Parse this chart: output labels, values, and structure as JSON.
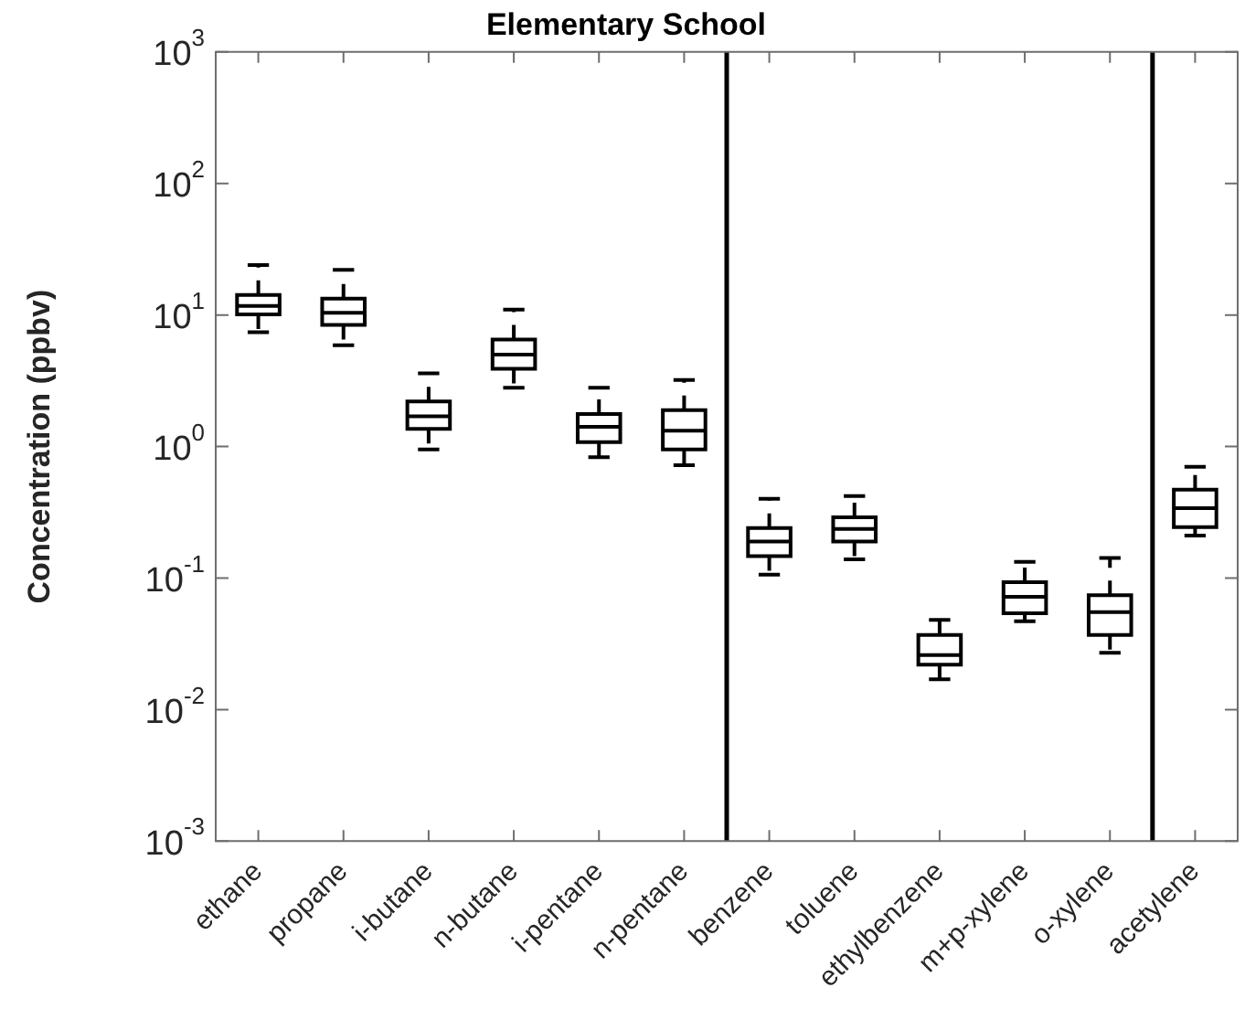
{
  "chart_data": {
    "type": "box",
    "title": "Elementary School",
    "ylabel": "Concentration (ppbv)",
    "categories": [
      "ethane",
      "propane",
      "i-butane",
      "n-butane",
      "i-pentane",
      "n-pentane",
      "benzene",
      "toluene",
      "ethylbenzene",
      "m+p-xylene",
      "o-xylene",
      "acetylene"
    ],
    "boxes": [
      {
        "low": 7.4,
        "q1": 10.1,
        "median": 11.7,
        "q3": 14.2,
        "high": 24
      },
      {
        "low": 5.9,
        "q1": 8.4,
        "median": 10.4,
        "q3": 13.3,
        "high": 22
      },
      {
        "low": 0.95,
        "q1": 1.36,
        "median": 1.7,
        "q3": 2.2,
        "high": 3.6
      },
      {
        "low": 2.8,
        "q1": 3.9,
        "median": 5.0,
        "q3": 6.5,
        "high": 11
      },
      {
        "low": 0.83,
        "q1": 1.08,
        "median": 1.41,
        "q3": 1.77,
        "high": 2.8
      },
      {
        "low": 0.72,
        "q1": 0.95,
        "median": 1.32,
        "q3": 1.89,
        "high": 3.2
      },
      {
        "low": 0.106,
        "q1": 0.147,
        "median": 0.19,
        "q3": 0.24,
        "high": 0.4
      },
      {
        "low": 0.139,
        "q1": 0.19,
        "median": 0.236,
        "q3": 0.29,
        "high": 0.42
      },
      {
        "low": 0.017,
        "q1": 0.022,
        "median": 0.026,
        "q3": 0.037,
        "high": 0.048
      },
      {
        "low": 0.047,
        "q1": 0.054,
        "median": 0.072,
        "q3": 0.093,
        "high": 0.133
      },
      {
        "low": 0.027,
        "q1": 0.037,
        "median": 0.055,
        "q3": 0.074,
        "high": 0.142
      },
      {
        "low": 0.21,
        "q1": 0.244,
        "median": 0.34,
        "q3": 0.47,
        "high": 0.7
      }
    ],
    "color": "#000000",
    "log": true,
    "ylim": [
      0.001,
      1000
    ],
    "yticks": [
      {
        "value": 0.001,
        "label": "10$^{-3}$"
      },
      {
        "value": 0.01,
        "label": "10$^{-2}$"
      },
      {
        "value": 0.1,
        "label": "10$^{-1}$"
      },
      {
        "value": 1,
        "label": "10$^{0}$"
      },
      {
        "value": 10,
        "label": "10$^{1}$"
      },
      {
        "value": 100,
        "label": "10$^{2}$"
      },
      {
        "value": 1000,
        "label": "10$^{3}$"
      }
    ],
    "grid": false
  }
}
